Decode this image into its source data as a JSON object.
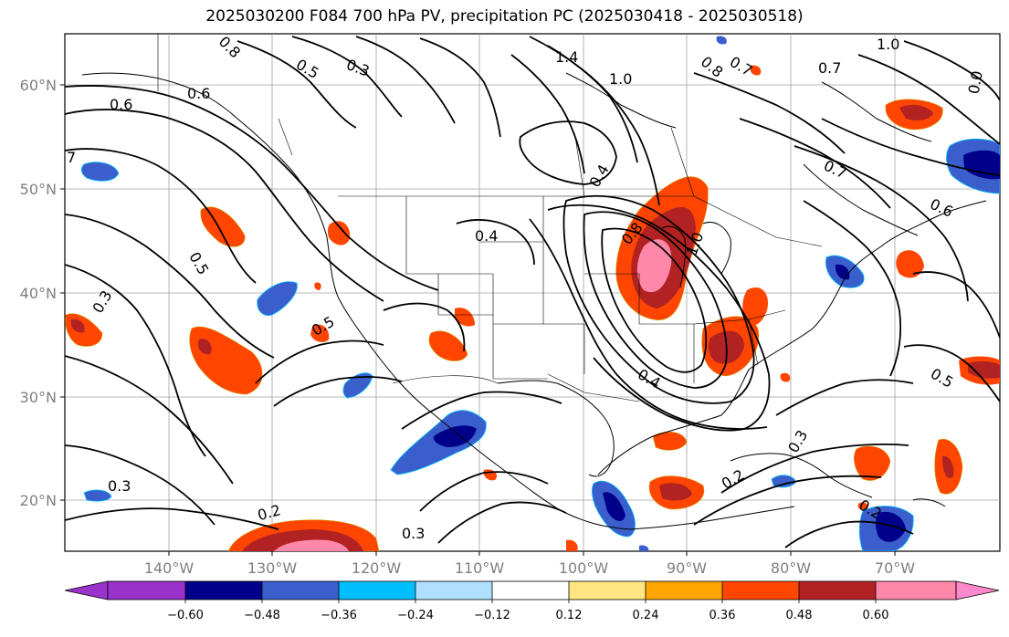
{
  "title": "2025030200 F084 700 hPa PV, precipitation PC (2025030418 - 2025030518)",
  "lat_labels": [
    "60°N",
    "50°N",
    "40°N",
    "30°N",
    "20°N"
  ],
  "lon_labels": [
    "140°W",
    "130°W",
    "120°W",
    "110°W",
    "100°W",
    "90°W",
    "80°W",
    "70°W"
  ],
  "colorbar": {
    "ticks": [
      "−0.60",
      "−0.48",
      "−0.36",
      "−0.24",
      "−0.12",
      "0.12",
      "0.24",
      "0.36",
      "0.48",
      "0.60"
    ],
    "colors": [
      "#9933cc",
      "#00008b",
      "#3a5fcd",
      "#00bfff",
      "#b0e0ff",
      "#ffffff",
      "#ffe680",
      "#ffa500",
      "#ff4500",
      "#b22222",
      "#ff88aa",
      "#ff88cc"
    ]
  },
  "contour_labels": [
    "0.8",
    "0.5",
    "0.3",
    "1.4",
    "1.0",
    "0.7",
    "0.8",
    "1.0",
    "0.7",
    "0.6",
    "7",
    "0.6",
    "0.4",
    "0.4",
    "0.8",
    "1.0",
    "0.5",
    "0.3",
    "0.5",
    "0.4",
    "0.7",
    "0.6",
    "0.5",
    "0.3",
    "0.2",
    "0.3",
    "0.2",
    "0.3",
    "0.2",
    "0.0"
  ]
}
